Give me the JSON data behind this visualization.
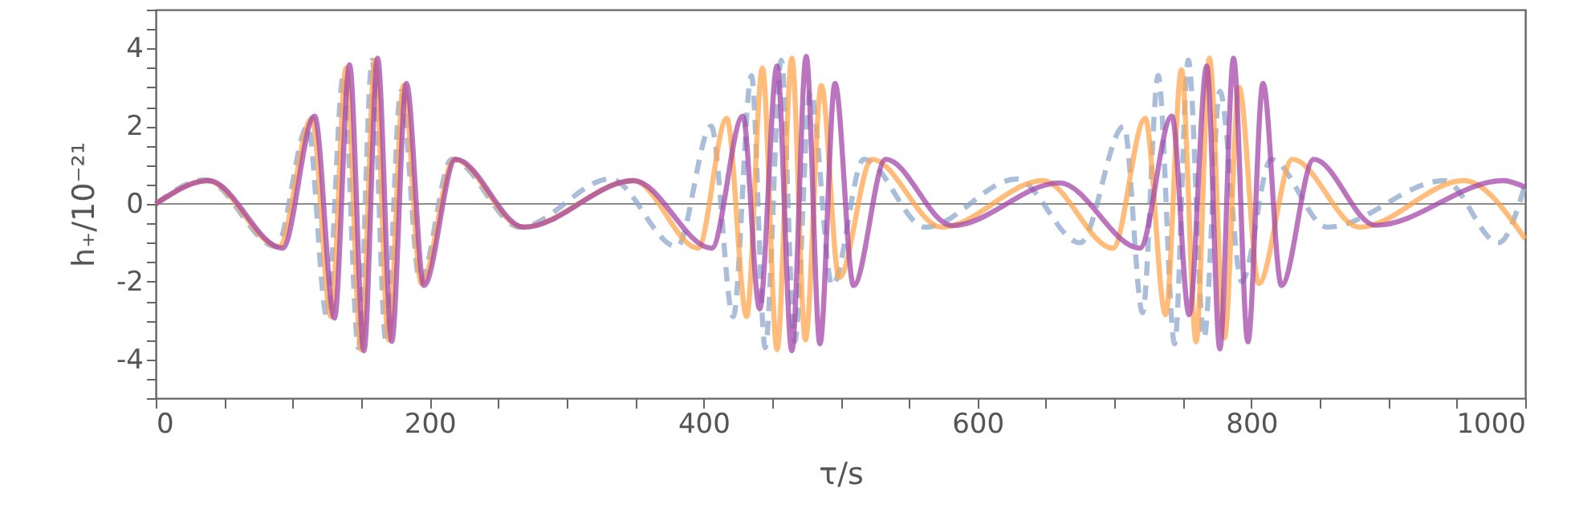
{
  "chart_data": {
    "type": "line",
    "xlabel": "τ/s",
    "ylabel": "h₊/10⁻²¹",
    "xlim": [
      0,
      1000
    ],
    "ylim": [
      -5,
      5
    ],
    "xticks": [
      0,
      {
        "value": 50,
        "label": null
      },
      {
        "value": 100,
        "label": null
      },
      {
        "value": 150,
        "label": null
      },
      200,
      {
        "value": 250,
        "label": null
      },
      {
        "value": 300,
        "label": null
      },
      {
        "value": 350,
        "label": null
      },
      400,
      {
        "value": 450,
        "label": null
      },
      {
        "value": 500,
        "label": null
      },
      {
        "value": 550,
        "label": null
      },
      600,
      {
        "value": 650,
        "label": null
      },
      {
        "value": 700,
        "label": null
      },
      {
        "value": 750,
        "label": null
      },
      800,
      {
        "value": 850,
        "label": null
      },
      {
        "value": 900,
        "label": null
      },
      {
        "value": 950,
        "label": null
      },
      1000
    ],
    "yticks": [
      {
        "value": -5,
        "label": null
      },
      {
        "value": -4.5,
        "label": null
      },
      -4,
      {
        "value": -3.5,
        "label": null
      },
      {
        "value": -3,
        "label": null
      },
      {
        "value": -2.5,
        "label": null
      },
      -2,
      {
        "value": -1.5,
        "label": null
      },
      {
        "value": -1,
        "label": null
      },
      {
        "value": -0.5,
        "label": null
      },
      0,
      {
        "value": 0.5,
        "label": null
      },
      {
        "value": 1,
        "label": null
      },
      {
        "value": 1.5,
        "label": null
      },
      2,
      {
        "value": 2.5,
        "label": null
      },
      {
        "value": 3,
        "label": null
      },
      {
        "value": 3.5,
        "label": null
      },
      4,
      {
        "value": 4.5,
        "label": null
      },
      {
        "value": 5,
        "label": null
      }
    ],
    "grid": false,
    "marker": "none",
    "ref_lines": [
      {
        "axis": "y",
        "value": 0,
        "color": "#8c8c8c",
        "line_style": "solid"
      }
    ],
    "series": [
      {
        "color": "#8fa8cc",
        "line_style": "dashed",
        "x": [
          0,
          36,
          88,
          111,
          125,
          137,
          148,
          158,
          168,
          179,
          193,
          216,
          266,
          332,
          380.6,
          405.6,
          421.7,
          435,
          445,
          456.8,
          466.6,
          478,
          494,
          517,
          562,
          628.5,
          675,
          707,
          720.6,
          732,
          744,
          754,
          765.5,
          777,
          793,
          814.4,
          855.5,
          941,
          980.5,
          1000
        ],
        "values": [
          0,
          0.62,
          -1.1,
          2.0,
          -2.9,
          3.3,
          -3.7,
          3.7,
          -3.5,
          2.9,
          -2.0,
          1.15,
          -0.6,
          0.64,
          -1.1,
          2.0,
          -2.9,
          3.3,
          -3.7,
          3.7,
          -3.55,
          2.9,
          -2.1,
          1.15,
          -0.6,
          0.64,
          -1.0,
          2.0,
          -2.8,
          3.3,
          -3.6,
          3.7,
          -3.45,
          2.9,
          -2.0,
          1.15,
          -0.6,
          0.6,
          -1.0,
          0.5
        ]
      },
      {
        "color": "#ffa64d",
        "line_style": "solid",
        "x": [
          0,
          38,
          90,
          114,
          128,
          139,
          150,
          160,
          170,
          181,
          194,
          218,
          268,
          349,
          396,
          417,
          431.5,
          443,
          453.7,
          464.5,
          474.4,
          486,
          499,
          523,
          574,
          648,
          699,
          722.5,
          737.4,
          749,
          759.7,
          769.4,
          780.4,
          791,
          805.4,
          830,
          879,
          955,
          1000
        ],
        "values": [
          0,
          0.6,
          -1.1,
          2.2,
          -2.9,
          3.5,
          -3.75,
          3.7,
          -3.5,
          3.05,
          -2.05,
          1.15,
          -0.6,
          0.6,
          -1.14,
          2.2,
          -2.9,
          3.5,
          -3.75,
          3.75,
          -3.5,
          3.05,
          -1.9,
          1.15,
          -0.6,
          0.6,
          -1.14,
          2.2,
          -2.85,
          3.45,
          -3.55,
          3.75,
          -3.45,
          3.0,
          -2.05,
          1.15,
          -0.6,
          0.6,
          -0.9
        ]
      },
      {
        "color": "#a347a8",
        "line_style": "solid",
        "x": [
          0,
          38.7,
          92.6,
          116,
          130.5,
          141.5,
          152,
          162,
          172.3,
          183,
          195.8,
          219,
          269,
          349,
          406,
          428.7,
          441,
          453.7,
          464.5,
          475,
          485,
          496,
          509.6,
          533,
          581.5,
          660,
          718.6,
          742,
          754.6,
          767.5,
          777,
          787,
          797.5,
          808.5,
          822,
          845.6,
          890.6,
          984,
          1000
        ],
        "values": [
          0,
          0.6,
          -1.14,
          2.26,
          -2.94,
          3.58,
          -3.78,
          3.75,
          -3.54,
          3.1,
          -2.1,
          1.15,
          -0.6,
          0.6,
          -1.14,
          2.26,
          -2.7,
          3.55,
          -3.78,
          3.8,
          -3.6,
          3.1,
          -2.1,
          1.15,
          -0.56,
          0.54,
          -1.14,
          2.26,
          -2.85,
          3.55,
          -3.73,
          3.75,
          -3.55,
          3.1,
          -2.1,
          1.15,
          -0.55,
          0.6,
          0.43
        ]
      }
    ]
  }
}
